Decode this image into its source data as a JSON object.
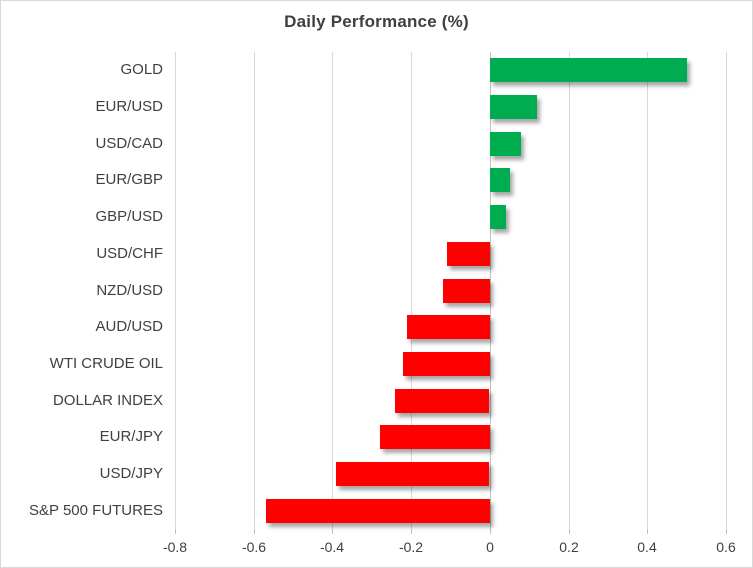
{
  "chart_data": {
    "type": "bar",
    "orientation": "horizontal",
    "title": "Daily Performance (%)",
    "categories": [
      "GOLD",
      "EUR/USD",
      "USD/CAD",
      "EUR/GBP",
      "GBP/USD",
      "USD/CHF",
      "NZD/USD",
      "AUD/USD",
      "WTI CRUDE OIL",
      "DOLLAR INDEX",
      "EUR/JPY",
      "USD/JPY",
      "S&P 500 FUTURES"
    ],
    "values": [
      0.5,
      0.12,
      0.08,
      0.05,
      0.04,
      -0.11,
      -0.12,
      -0.21,
      -0.22,
      -0.24,
      -0.28,
      -0.39,
      -0.57
    ],
    "xlabel": "",
    "ylabel": "",
    "xlim": [
      -0.8,
      0.6
    ],
    "xticks": [
      -0.8,
      -0.6,
      -0.4,
      -0.2,
      0,
      0.2,
      0.4,
      0.6
    ],
    "xtick_labels": [
      "-0.8",
      "-0.6",
      "-0.4",
      "-0.2",
      "0",
      "0.2",
      "0.4",
      "0.6"
    ],
    "grid": true,
    "legend_position": "none",
    "positive_color": "#00AC50",
    "negative_color": "#FF0000"
  }
}
